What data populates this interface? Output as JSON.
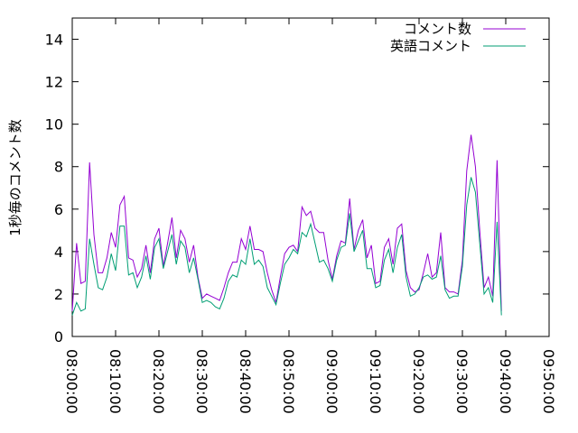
{
  "chart_data": {
    "type": "line",
    "title": "",
    "xlabel": "",
    "ylabel": "1秒毎のコメント数",
    "x_ticks": [
      "08:00:00",
      "08:10:00",
      "08:20:00",
      "08:30:00",
      "08:40:00",
      "08:50:00",
      "09:00:00",
      "09:10:00",
      "09:20:00",
      "09:30:00",
      "09:40:00",
      "09:50:00"
    ],
    "y_ticks": [
      "0",
      "2",
      "4",
      "6",
      "8",
      "10",
      "12",
      "14"
    ],
    "ylim": [
      0,
      15
    ],
    "xlim": [
      "08:00:00",
      "09:50:00"
    ],
    "grid": false,
    "legend_position": "top-right",
    "x_unit": "minutes after 08:00:00",
    "series": [
      {
        "name": "コメント数",
        "color": "#9400d3",
        "x": [
          0,
          1,
          2,
          3,
          4,
          5,
          6,
          7,
          8,
          9,
          10,
          11,
          12,
          13,
          14,
          15,
          16,
          17,
          18,
          19,
          20,
          21,
          22,
          23,
          24,
          25,
          26,
          27,
          28,
          29,
          30,
          31,
          32,
          33,
          34,
          35,
          36,
          37,
          38,
          39,
          40,
          41,
          42,
          43,
          44,
          45,
          46,
          47,
          48,
          49,
          50,
          51,
          52,
          53,
          54,
          55,
          56,
          57,
          58,
          59,
          60,
          61,
          62,
          63,
          64,
          65,
          66,
          67,
          68,
          69,
          70,
          71,
          72,
          73,
          74,
          75,
          76,
          77,
          78,
          79,
          80,
          81,
          82,
          83,
          84,
          85,
          86,
          87,
          88,
          89,
          90,
          91,
          92,
          93,
          94,
          95,
          96,
          97,
          98,
          99,
          100,
          101,
          102,
          103,
          104
        ],
        "values": [
          1.2,
          4.4,
          2.5,
          2.6,
          8.2,
          4.8,
          3.0,
          3.0,
          3.7,
          4.9,
          4.2,
          6.2,
          6.6,
          3.7,
          3.6,
          2.8,
          3.2,
          4.3,
          3.0,
          4.6,
          5.1,
          3.3,
          4.4,
          5.6,
          3.7,
          5.0,
          4.6,
          3.5,
          4.3,
          2.8,
          1.8,
          2.0,
          1.9,
          1.8,
          1.7,
          2.3,
          3.0,
          3.5,
          3.5,
          4.6,
          4.1,
          5.2,
          4.1,
          4.1,
          4.0,
          3.0,
          2.2,
          1.6,
          2.8,
          3.9,
          4.2,
          4.3,
          4.0,
          6.1,
          5.7,
          5.9,
          5.1,
          4.9,
          4.9,
          3.6,
          2.7,
          3.8,
          4.5,
          4.4,
          6.5,
          4.1,
          5.0,
          5.5,
          3.7,
          4.3,
          2.5,
          2.6,
          4.2,
          4.6,
          3.4,
          5.1,
          5.3,
          3.1,
          2.3,
          2.1,
          2.2,
          3.0,
          3.9,
          2.8,
          3.0,
          4.9,
          2.3,
          2.1,
          2.1,
          2.0,
          3.6,
          7.8,
          9.5,
          8.0,
          5.0,
          2.3,
          2.8,
          1.9,
          8.3,
          1.2,
          null,
          null,
          null,
          null,
          null
        ]
      },
      {
        "name": "英語コメント",
        "color": "#009e73",
        "x": [
          0,
          1,
          2,
          3,
          4,
          5,
          6,
          7,
          8,
          9,
          10,
          11,
          12,
          13,
          14,
          15,
          16,
          17,
          18,
          19,
          20,
          21,
          22,
          23,
          24,
          25,
          26,
          27,
          28,
          29,
          30,
          31,
          32,
          33,
          34,
          35,
          36,
          37,
          38,
          39,
          40,
          41,
          42,
          43,
          44,
          45,
          46,
          47,
          48,
          49,
          50,
          51,
          52,
          53,
          54,
          55,
          56,
          57,
          58,
          59,
          60,
          61,
          62,
          63,
          64,
          65,
          66,
          67,
          68,
          69,
          70,
          71,
          72,
          73,
          74,
          75,
          76,
          77,
          78,
          79,
          80,
          81,
          82,
          83,
          84,
          85,
          86,
          87,
          88,
          89,
          90,
          91,
          92,
          93,
          94,
          95,
          96,
          97,
          98,
          99,
          100,
          101,
          102,
          103,
          104
        ],
        "values": [
          1.0,
          1.6,
          1.2,
          1.3,
          4.6,
          3.4,
          2.3,
          2.2,
          2.8,
          3.9,
          3.1,
          5.2,
          5.2,
          2.9,
          3.0,
          2.3,
          2.8,
          3.8,
          2.7,
          4.2,
          4.6,
          3.2,
          4.0,
          4.8,
          3.4,
          4.5,
          4.2,
          3.0,
          3.7,
          2.7,
          1.6,
          1.7,
          1.6,
          1.4,
          1.3,
          1.8,
          2.6,
          2.9,
          2.8,
          3.6,
          3.4,
          4.6,
          3.4,
          3.6,
          3.3,
          2.3,
          1.9,
          1.5,
          2.5,
          3.4,
          3.7,
          4.1,
          3.9,
          4.9,
          4.7,
          5.3,
          4.4,
          3.5,
          3.6,
          3.2,
          2.6,
          3.6,
          4.2,
          4.3,
          5.8,
          4.0,
          4.5,
          5.0,
          3.2,
          3.2,
          2.3,
          2.4,
          3.6,
          4.1,
          3.0,
          4.2,
          4.8,
          2.8,
          1.9,
          2.0,
          2.3,
          2.8,
          2.9,
          2.7,
          2.8,
          3.8,
          2.2,
          1.8,
          1.9,
          1.9,
          3.3,
          6.2,
          7.5,
          6.8,
          4.4,
          2.0,
          2.3,
          1.6,
          5.4,
          1.0,
          null,
          null,
          null,
          null,
          null
        ]
      }
    ]
  }
}
